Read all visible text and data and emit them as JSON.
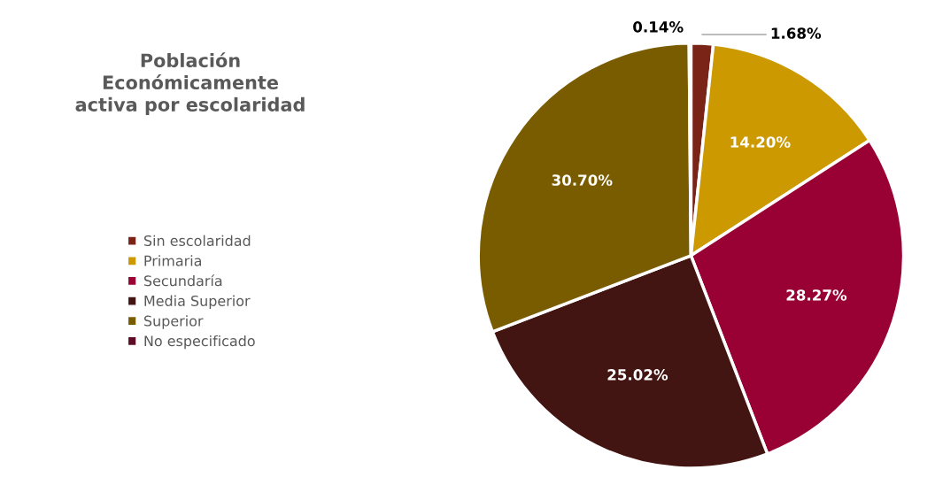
{
  "chart_data": {
    "type": "pie",
    "title": "Población\nEconómicamente\nactiva por escolaridad",
    "categories": [
      "Sin escolaridad",
      "Primaria",
      "Secundaría",
      "Media Superior",
      "Superior",
      "No especificado"
    ],
    "values": [
      1.68,
      14.2,
      28.27,
      25.02,
      30.7,
      0.14
    ],
    "value_labels": [
      "1.68%",
      "14.20%",
      "28.27%",
      "25.02%",
      "30.70%",
      "0.14%"
    ],
    "colors": [
      "#7a2418",
      "#cc9900",
      "#990033",
      "#431512",
      "#7a5c00",
      "#5e0b25"
    ],
    "legend": "left"
  }
}
